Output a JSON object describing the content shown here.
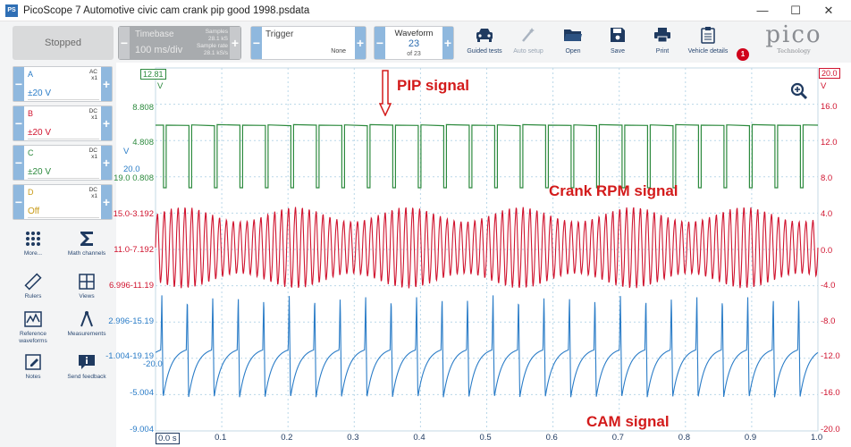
{
  "window": {
    "title": "PicoScope 7 Automotive civic cam crank pip good 1998.psdata",
    "app_icon_text": "PS",
    "minimize": "—",
    "maximize": "☐",
    "close": "✕"
  },
  "toolbar": {
    "stopped_label": "Stopped",
    "timebase": {
      "title": "Timebase",
      "value": "100 ms/div",
      "samples_label": "Samples",
      "samples_value": "28.1 kS",
      "rate_label": "Sample rate",
      "rate_value": "28.1 kS/s"
    },
    "trigger": {
      "title": "Trigger",
      "mode": "None"
    },
    "waveform": {
      "title": "Waveform",
      "index": "23",
      "total": "of 23"
    },
    "tools": [
      {
        "label": "Guided tests",
        "icon": "car-icon"
      },
      {
        "label": "Auto setup",
        "icon": "wand-icon"
      },
      {
        "label": "Open",
        "icon": "folder-icon"
      },
      {
        "label": "Save",
        "icon": "save-icon"
      },
      {
        "label": "Print",
        "icon": "printer-icon"
      },
      {
        "label": "Vehicle details",
        "icon": "clipboard-icon"
      }
    ],
    "notification_count": "1",
    "logo_text": "pico",
    "logo_sub": "Technology"
  },
  "channels": [
    {
      "name": "A",
      "coupling": "AC",
      "probe": "x1",
      "range": "±20 V",
      "color": "#2a7cc7"
    },
    {
      "name": "B",
      "coupling": "DC",
      "probe": "x1",
      "range": "±20 V",
      "color": "#d0142f"
    },
    {
      "name": "C",
      "coupling": "DC",
      "probe": "x1",
      "range": "±20 V",
      "color": "#2d8a3e"
    },
    {
      "name": "D",
      "coupling": "DC",
      "probe": "x1",
      "range": "Off",
      "color": "#c89a16"
    }
  ],
  "sidebar_tools": [
    {
      "label": "More...",
      "icon": "grid-dots-icon"
    },
    {
      "label": "Math channels",
      "icon": "sigma-icon"
    },
    {
      "label": "Rulers",
      "icon": "ruler-icon"
    },
    {
      "label": "Views",
      "icon": "views-grid-icon"
    },
    {
      "label": "Reference waveforms",
      "icon": "reference-waveform-icon"
    },
    {
      "label": "Measurements",
      "icon": "measurements-icon"
    },
    {
      "label": "Notes",
      "icon": "notes-icon"
    },
    {
      "label": "Send feedback",
      "icon": "feedback-icon"
    }
  ],
  "plot": {
    "left_axis_labels": [
      "8.808",
      "4.808",
      "19.0 0.808",
      "15.0-3.192",
      "11.0-7.192",
      "6.996-11.19",
      "2.996-15.19",
      "-1.004-19.19",
      "-5.004",
      "-9.004"
    ],
    "left_extra_labels": {
      "v_top": "V",
      "v_mid": "V",
      "c_20": "20.0",
      "minus20": "-20.0"
    },
    "channel_marker_value": "12.81",
    "right_marker_value": "20.0",
    "right_axis_labels": [
      "V",
      "16.0",
      "12.0",
      "8.0",
      "4.0",
      "0.0",
      "-4.0",
      "-8.0",
      "-12.0",
      "-16.0",
      "-20.0"
    ],
    "x_axis_labels": [
      "0.0 s",
      "0.1",
      "0.2",
      "0.3",
      "0.4",
      "0.5",
      "0.6",
      "0.7",
      "0.8",
      "0.9",
      "1.0"
    ],
    "zoom_icon": "zoom-in-icon"
  },
  "annotations": {
    "pip": "PIP signal",
    "crank": "Crank RPM signal",
    "cam": "CAM signal"
  },
  "chart_data": {
    "type": "line",
    "title": "",
    "xlabel": "",
    "ylabel": "V",
    "xlim": [
      0.0,
      1.0
    ],
    "ylim": [
      -20.0,
      20.0
    ],
    "grid": true,
    "series": [
      {
        "channel": "C",
        "color": "#2d8a3e",
        "kind": "square pulse train",
        "pulses_in_window": 26,
        "high_level": 12.8,
        "low_level": 0.8
      },
      {
        "channel": "B",
        "color": "#d0142f",
        "kind": "oscillating crank signal",
        "cycles_in_window": 96,
        "max": 4.8,
        "min": -4.8
      },
      {
        "channel": "A",
        "color": "#2a7cc7",
        "kind": "cam spike train",
        "spikes_in_window": 26,
        "max": 19.2,
        "min": -17.9
      }
    ]
  }
}
